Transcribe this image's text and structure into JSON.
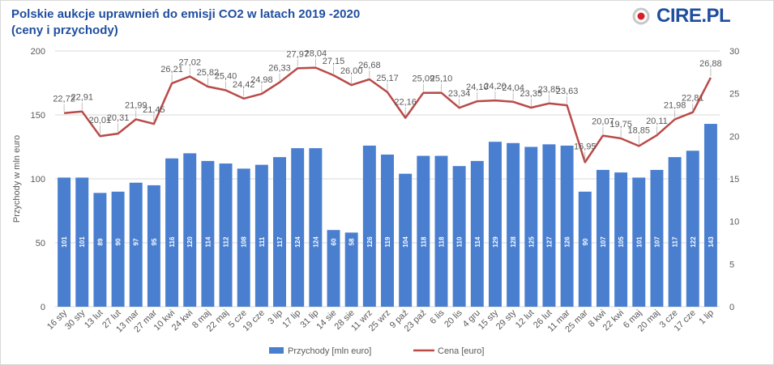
{
  "title": "Polskie aukcje uprawnień do emisji CO2 w latach 2019 -2020\n(ceny i przychody)",
  "logo": {
    "text": "CIRE.PL"
  },
  "colors": {
    "bar": "#4a7fd0",
    "line": "#b94a48",
    "title": "#1f4e9e",
    "axis_text": "#595959",
    "grid": "#d9d9d9",
    "bar_label": "#ffffff",
    "leader": "#a6a6a6"
  },
  "chart_data": {
    "type": "bar+line",
    "title": "Polskie aukcje uprawnień do emisji CO2 w latach 2019 -2020 (ceny i przychody)",
    "categories": [
      "16 sty",
      "30 sty",
      "13 lut",
      "27 lut",
      "13 mar",
      "27 mar",
      "10 kwi",
      "24 kwi",
      "8 maj",
      "22 maj",
      "5 cze",
      "19 cze",
      "3 lip",
      "17 lip",
      "31 lip",
      "14 sie",
      "28 sie",
      "11 wrz",
      "25 wrz",
      "9 paź",
      "23 paź",
      "6 lis",
      "20 lis",
      "4 gru",
      "15 sty",
      "29 sty",
      "12 lut",
      "26 lut",
      "11 mar",
      "25 mar",
      "8 kwi",
      "22 kwi",
      "6 maj",
      "20 maj",
      "3 cze",
      "17 cze",
      "1 lip"
    ],
    "series": [
      {
        "name": "Przychody [mln euro]",
        "type": "bar",
        "axis": "left",
        "values": [
          101,
          101,
          89,
          90,
          97,
          95,
          116,
          120,
          114,
          112,
          108,
          111,
          117,
          124,
          124,
          60,
          58,
          126,
          119,
          104,
          118,
          118,
          110,
          114,
          129,
          128,
          125,
          127,
          126,
          90,
          107,
          105,
          101,
          107,
          117,
          122,
          143
        ]
      },
      {
        "name": "Cena [euro]",
        "type": "line",
        "axis": "right",
        "values": [
          22.72,
          22.91,
          20.01,
          20.31,
          21.99,
          21.45,
          26.21,
          27.02,
          25.82,
          25.4,
          24.42,
          24.98,
          26.33,
          27.97,
          28.04,
          27.15,
          26.0,
          26.68,
          25.17,
          22.16,
          25.09,
          25.1,
          23.34,
          24.1,
          24.2,
          24.04,
          23.35,
          23.85,
          23.63,
          16.95,
          20.07,
          19.75,
          18.85,
          20.11,
          21.98,
          22.81,
          26.88
        ],
        "labels": [
          "22,72",
          "22,91",
          "20,01",
          "20,31",
          "21,99",
          "21,45",
          "26,21",
          "27,02",
          "25,82",
          "25,40",
          "24,42",
          "24,98",
          "26,33",
          "27,97",
          "28,04",
          "27,15",
          "26,00",
          "26,68",
          "25,17",
          "22,16",
          "25,09",
          "25,10",
          "23,34",
          "24,10",
          "24,20",
          "24,04",
          "23,35",
          "23,85",
          "23,63",
          "16,95",
          "20,07",
          "19,75",
          "18,85",
          "20,11",
          "21,98",
          "22,81",
          "26,88"
        ]
      }
    ],
    "y_left": {
      "label": "Przychody w mln euro",
      "min": 0,
      "max": 200,
      "ticks": [
        "0",
        "50",
        "100",
        "150",
        "200"
      ]
    },
    "y_right": {
      "min": 0,
      "max": 30,
      "ticks": [
        "0",
        "5",
        "10",
        "15",
        "20",
        "25",
        "30"
      ]
    },
    "grid": "horizontal",
    "legend": {
      "position": "bottom",
      "items": [
        "Przychody [mln euro]",
        "Cena [euro]"
      ]
    }
  }
}
